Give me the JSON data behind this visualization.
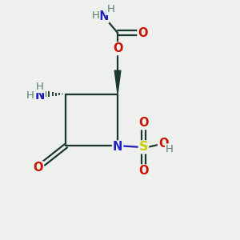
{
  "bg_color": "#edf0ed",
  "atom_colors": {
    "C": "#1a3830",
    "N": "#2020c0",
    "O": "#cc1100",
    "S": "#cccc00",
    "H": "#5a7a74"
  }
}
